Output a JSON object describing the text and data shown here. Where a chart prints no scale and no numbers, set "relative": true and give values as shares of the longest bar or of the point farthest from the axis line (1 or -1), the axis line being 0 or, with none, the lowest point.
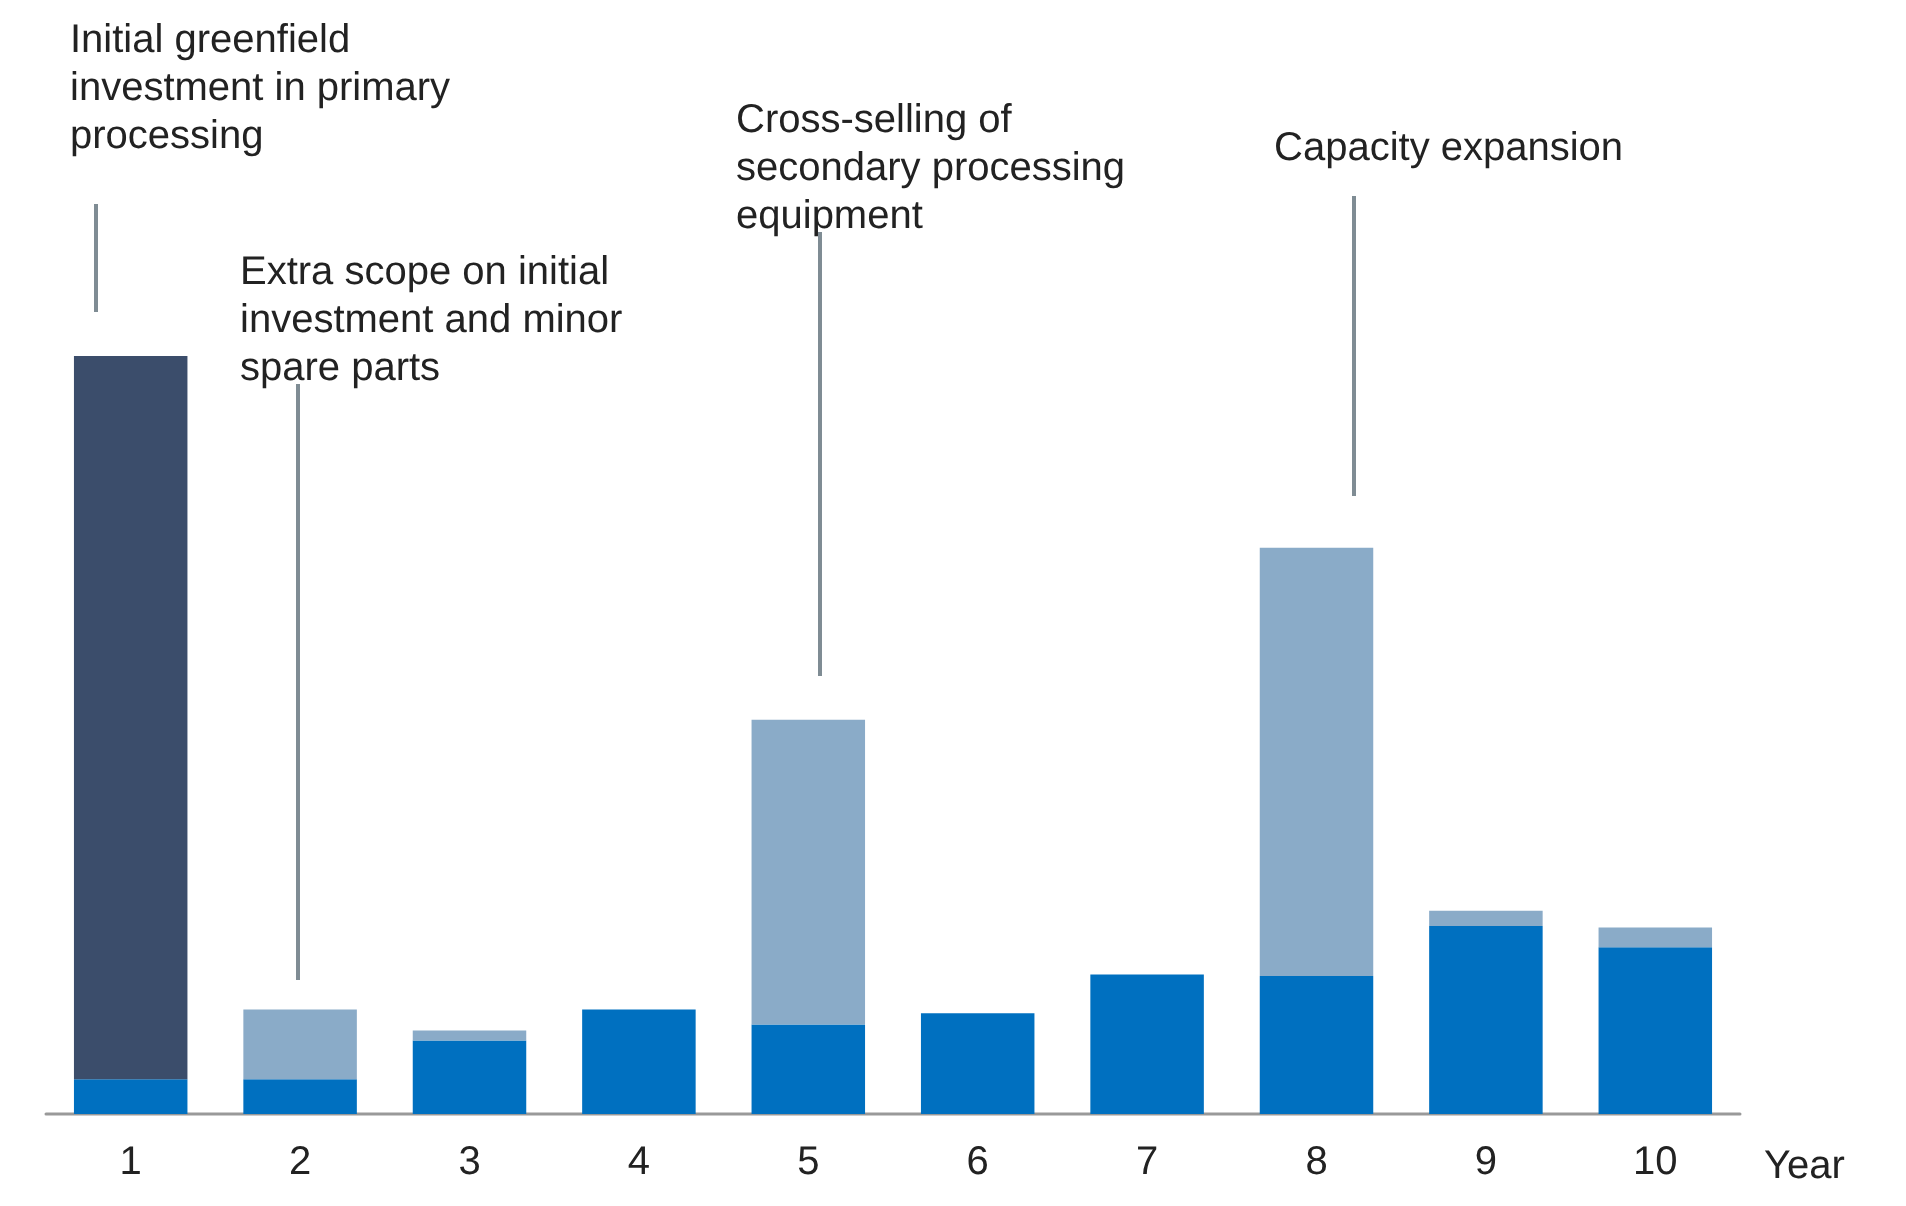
{
  "chart_data": {
    "type": "bar",
    "stacked": true,
    "relative": true,
    "xlabel": "Year",
    "categories": [
      "1",
      "2",
      "3",
      "4",
      "5",
      "6",
      "7",
      "8",
      "9",
      "10"
    ],
    "series": [
      {
        "color": "#0070c0",
        "values": [
          0.046,
          0.046,
          0.097,
          0.138,
          0.118,
          0.133,
          0.184,
          0.182,
          0.248,
          0.22
        ]
      },
      {
        "color": "#8aabc8",
        "values": [
          null,
          0.092,
          0.013,
          null,
          0.402,
          null,
          null,
          0.565,
          0.02,
          0.026
        ]
      },
      {
        "color": "#3b4d6b",
        "values": [
          0.954,
          null,
          null,
          null,
          null,
          null,
          null,
          null,
          null,
          null
        ]
      }
    ],
    "annotations": [
      "Initial greenfield investment in primary processing",
      "Extra scope on initial investment and minor spare parts",
      "Cross-selling of secondary processing equipment",
      "Capacity expansion"
    ]
  }
}
